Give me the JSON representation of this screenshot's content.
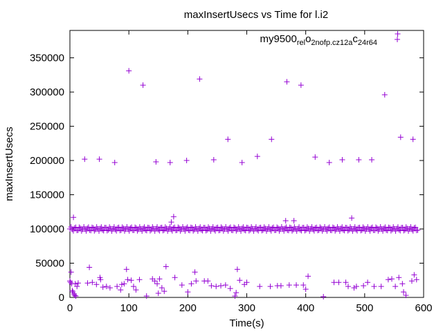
{
  "chart_data": {
    "type": "scatter",
    "title": "maxInsertUsecs vs Time for l.i2",
    "xlabel": "Time(s)",
    "ylabel": "maxInsertUsecs",
    "xlim": [
      0,
      600
    ],
    "ylim": [
      0,
      390000
    ],
    "x_ticks": [
      0,
      100,
      200,
      300,
      400,
      500,
      600
    ],
    "y_ticks": [
      0,
      50000,
      100000,
      150000,
      200000,
      250000,
      300000,
      350000
    ],
    "x_tick_labels": [
      "0",
      "100",
      "200",
      "300",
      "400",
      "500",
      "600"
    ],
    "y_tick_labels": [
      "0",
      "50000",
      "100000",
      "150000",
      "200000",
      "250000",
      "300000",
      "350000"
    ],
    "grid": false,
    "legend_position": "top-right",
    "marker": "plus",
    "color": "#9400d3",
    "series": [
      {
        "name": "my9500_rel_o2nofp.cz12a_c24r64",
        "name_display": {
          "a": "my9500",
          "b": "rel",
          "c": "o",
          "d": "2nofp.cz12a",
          "e": "c",
          "f": "24r64"
        },
        "points": [
          [
            0,
            24000
          ],
          [
            1,
            22000
          ],
          [
            2,
            37000
          ],
          [
            3,
            20000
          ],
          [
            4,
            10000
          ],
          [
            5,
            8000
          ],
          [
            6,
            117000
          ],
          [
            7,
            5000
          ],
          [
            8,
            3000
          ],
          [
            9,
            20000
          ],
          [
            10,
            2000
          ],
          [
            12,
            16000
          ],
          [
            14,
            21000
          ],
          [
            25,
            202000
          ],
          [
            30,
            21000
          ],
          [
            33,
            44000
          ],
          [
            38,
            22000
          ],
          [
            45,
            19000
          ],
          [
            50,
            202000
          ],
          [
            51,
            29000
          ],
          [
            52,
            26000
          ],
          [
            56,
            15000
          ],
          [
            62,
            16000
          ],
          [
            68,
            14000
          ],
          [
            76,
            197000
          ],
          [
            80,
            16000
          ],
          [
            86,
            11000
          ],
          [
            88,
            19000
          ],
          [
            92,
            20000
          ],
          [
            96,
            41000
          ],
          [
            98,
            26000
          ],
          [
            100,
            331000
          ],
          [
            104,
            25000
          ],
          [
            108,
            16000
          ],
          [
            112,
            11000
          ],
          [
            118,
            26000
          ],
          [
            124,
            310000
          ],
          [
            130,
            2000
          ],
          [
            140,
            27000
          ],
          [
            144,
            24000
          ],
          [
            146,
            198000
          ],
          [
            148,
            20000
          ],
          [
            150,
            6000
          ],
          [
            152,
            27000
          ],
          [
            156,
            14000
          ],
          [
            160,
            9000
          ],
          [
            163,
            45000
          ],
          [
            170,
            197000
          ],
          [
            172,
            110000
          ],
          [
            176,
            118000
          ],
          [
            178,
            29000
          ],
          [
            190,
            18000
          ],
          [
            198,
            200000
          ],
          [
            200,
            8000
          ],
          [
            206,
            20000
          ],
          [
            212,
            37000
          ],
          [
            214,
            24000
          ],
          [
            220,
            319000
          ],
          [
            228,
            24000
          ],
          [
            234,
            24000
          ],
          [
            240,
            17000
          ],
          [
            244,
            201000
          ],
          [
            248,
            16000
          ],
          [
            256,
            17000
          ],
          [
            264,
            18000
          ],
          [
            268,
            231000
          ],
          [
            272,
            13000
          ],
          [
            280,
            2000
          ],
          [
            282,
            7000
          ],
          [
            284,
            41000
          ],
          [
            288,
            25000
          ],
          [
            292,
            197000
          ],
          [
            296,
            19000
          ],
          [
            300,
            22000
          ],
          [
            318,
            206000
          ],
          [
            322,
            16000
          ],
          [
            340,
            16000
          ],
          [
            342,
            231000
          ],
          [
            352,
            17000
          ],
          [
            358,
            17000
          ],
          [
            366,
            112000
          ],
          [
            368,
            315000
          ],
          [
            372,
            18000
          ],
          [
            380,
            112000
          ],
          [
            384,
            18000
          ],
          [
            392,
            310000
          ],
          [
            396,
            18000
          ],
          [
            400,
            12000
          ],
          [
            404,
            31000
          ],
          [
            416,
            205000
          ],
          [
            430,
            1000
          ],
          [
            440,
            197000
          ],
          [
            448,
            22000
          ],
          [
            456,
            22000
          ],
          [
            462,
            201000
          ],
          [
            468,
            22000
          ],
          [
            472,
            16000
          ],
          [
            478,
            116000
          ],
          [
            482,
            14000
          ],
          [
            486,
            16000
          ],
          [
            490,
            201000
          ],
          [
            498,
            17000
          ],
          [
            505,
            22000
          ],
          [
            512,
            201000
          ],
          [
            516,
            16000
          ],
          [
            528,
            16000
          ],
          [
            534,
            296000
          ],
          [
            540,
            26000
          ],
          [
            546,
            27000
          ],
          [
            552,
            16000
          ],
          [
            556,
            385000
          ],
          [
            558,
            29000
          ],
          [
            561,
            234000
          ],
          [
            564,
            20000
          ],
          [
            566,
            8000
          ],
          [
            570,
            3000
          ],
          [
            580,
            24000
          ],
          [
            582,
            231000
          ],
          [
            584,
            33000
          ],
          [
            588,
            26000
          ]
        ],
        "baseline_band": {
          "x_start": 0,
          "x_end": 590,
          "y_center": 100000,
          "y_spread": 3000,
          "count": 300
        }
      }
    ]
  }
}
